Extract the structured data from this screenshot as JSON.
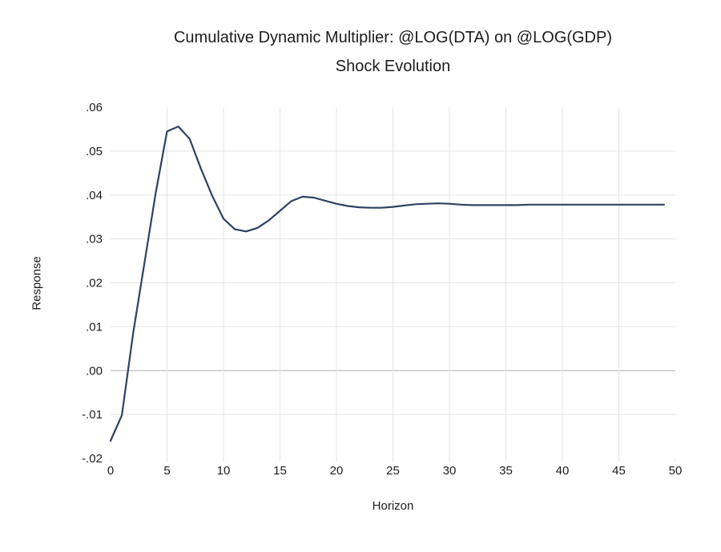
{
  "chart_data": {
    "type": "line",
    "title": "Cumulative Dynamic Multiplier: @LOG(DTA) on @LOG(GDP)",
    "subtitle": "Shock Evolution",
    "xlabel": "Horizon",
    "ylabel": "Response",
    "xlim": [
      0,
      50
    ],
    "ylim": [
      -0.02,
      0.06
    ],
    "x_ticks": [
      0,
      5,
      10,
      15,
      20,
      25,
      30,
      35,
      40,
      45,
      50
    ],
    "y_ticks": [
      0.06,
      0.05,
      0.04,
      0.03,
      0.02,
      0.01,
      0.0,
      -0.01,
      -0.02
    ],
    "y_tick_labels": [
      ".06",
      ".05",
      ".04",
      ".03",
      ".02",
      ".01",
      ".00",
      "-.01",
      "-.02"
    ],
    "grid": "on",
    "legend": "none",
    "x": [
      0,
      1,
      2,
      3,
      4,
      5,
      6,
      7,
      8,
      9,
      10,
      11,
      12,
      13,
      14,
      15,
      16,
      17,
      18,
      19,
      20,
      21,
      22,
      23,
      24,
      25,
      26,
      27,
      28,
      29,
      30,
      31,
      32,
      33,
      34,
      35,
      36,
      37,
      38,
      39,
      40,
      41,
      42,
      43,
      44,
      45,
      46,
      47,
      48,
      49
    ],
    "series": [
      {
        "name": "Shock Evolution",
        "values": [
          -0.016,
          -0.0102,
          0.0085,
          0.0245,
          0.0405,
          0.0545,
          0.0556,
          0.0528,
          0.046,
          0.0398,
          0.0346,
          0.0322,
          0.0317,
          0.0325,
          0.0342,
          0.0364,
          0.0386,
          0.0396,
          0.0394,
          0.0387,
          0.038,
          0.0375,
          0.0372,
          0.0371,
          0.0371,
          0.0373,
          0.0376,
          0.0379,
          0.038,
          0.0381,
          0.038,
          0.0378,
          0.0377,
          0.0377,
          0.0377,
          0.0377,
          0.0377,
          0.0378,
          0.0378,
          0.0378,
          0.0378,
          0.0378,
          0.0378,
          0.0378,
          0.0378,
          0.0378,
          0.0378,
          0.0378,
          0.0378,
          0.0378
        ]
      }
    ],
    "colors": {
      "line": "#2d4263",
      "grid": "#e4e4e4",
      "zero_line": "#b0b0b0",
      "text": "#1c1c1c",
      "background": "#ffffff"
    }
  }
}
